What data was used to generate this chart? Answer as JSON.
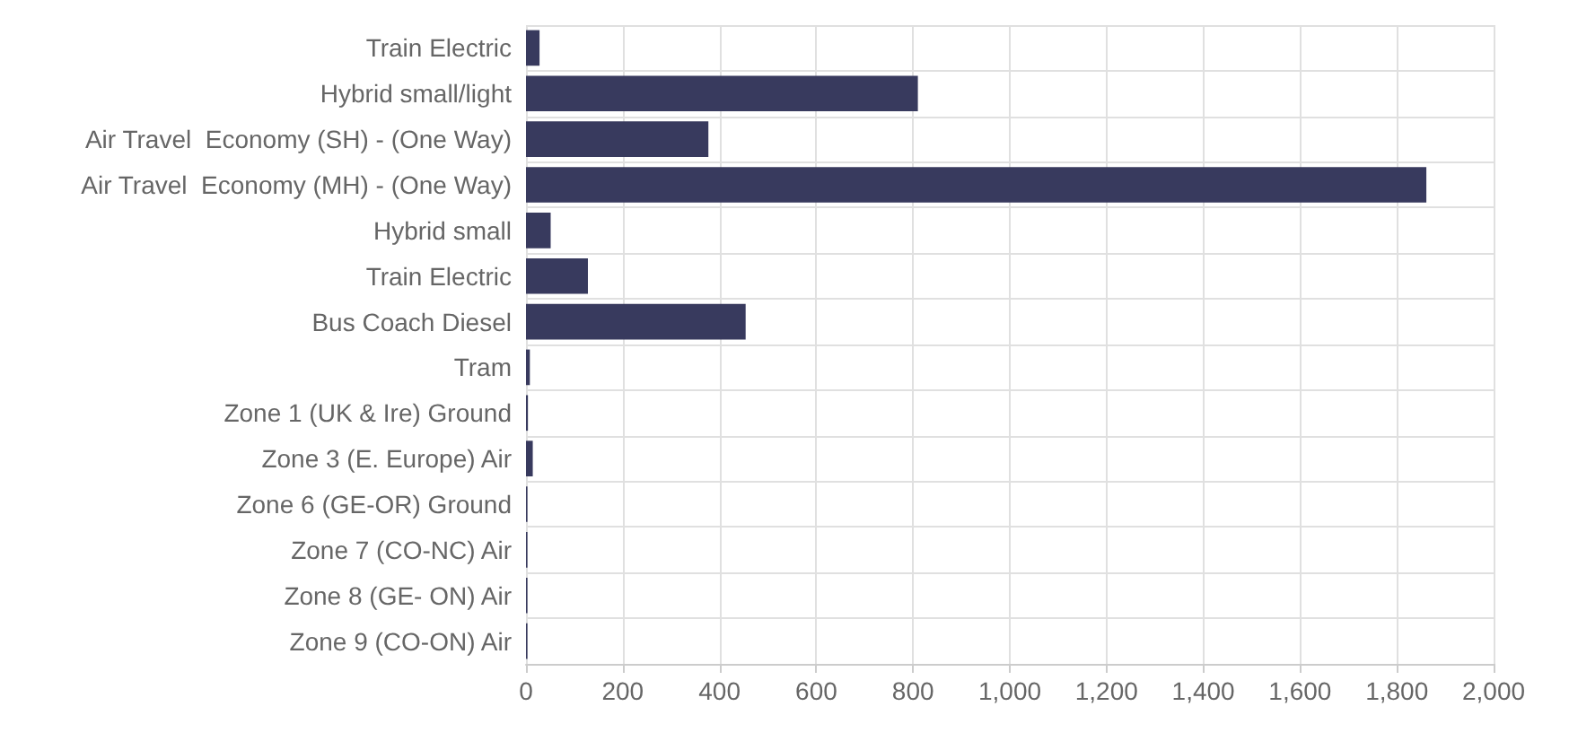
{
  "chart_data": {
    "type": "bar",
    "orientation": "horizontal",
    "categories": [
      "Train Electric",
      "Hybrid small/light",
      "Air Travel  Economy (SH) - (One Way)",
      "Air Travel  Economy (MH) - (One Way)",
      "Hybrid small",
      "Train Electric",
      "Bus Coach Diesel",
      "Tram",
      "Zone 1 (UK & Ire) Ground",
      "Zone 3 (E. Europe) Air",
      "Zone 6 (GE-OR) Ground",
      "Zone 7 (CO-NC) Air",
      "Zone 8 (GE- ON) Air",
      "Zone 9 (CO-ON) Air"
    ],
    "series": [
      {
        "color": "#383a5e",
        "values": [
          28,
          810,
          377,
          1861,
          51,
          128,
          454,
          8,
          4,
          14,
          3,
          3,
          3,
          3
        ]
      }
    ],
    "xlim": [
      0,
      2000
    ],
    "xticks": [
      0,
      200,
      400,
      600,
      800,
      {
        "value": 1000,
        "label": "1,000"
      },
      {
        "value": 1200,
        "label": "1,200"
      },
      {
        "value": 1400,
        "label": "1,400"
      },
      {
        "value": 1600,
        "label": "1,600"
      },
      {
        "value": 1800,
        "label": "1,800"
      },
      {
        "value": 2000,
        "label": "2,000"
      }
    ],
    "grid": true
  }
}
